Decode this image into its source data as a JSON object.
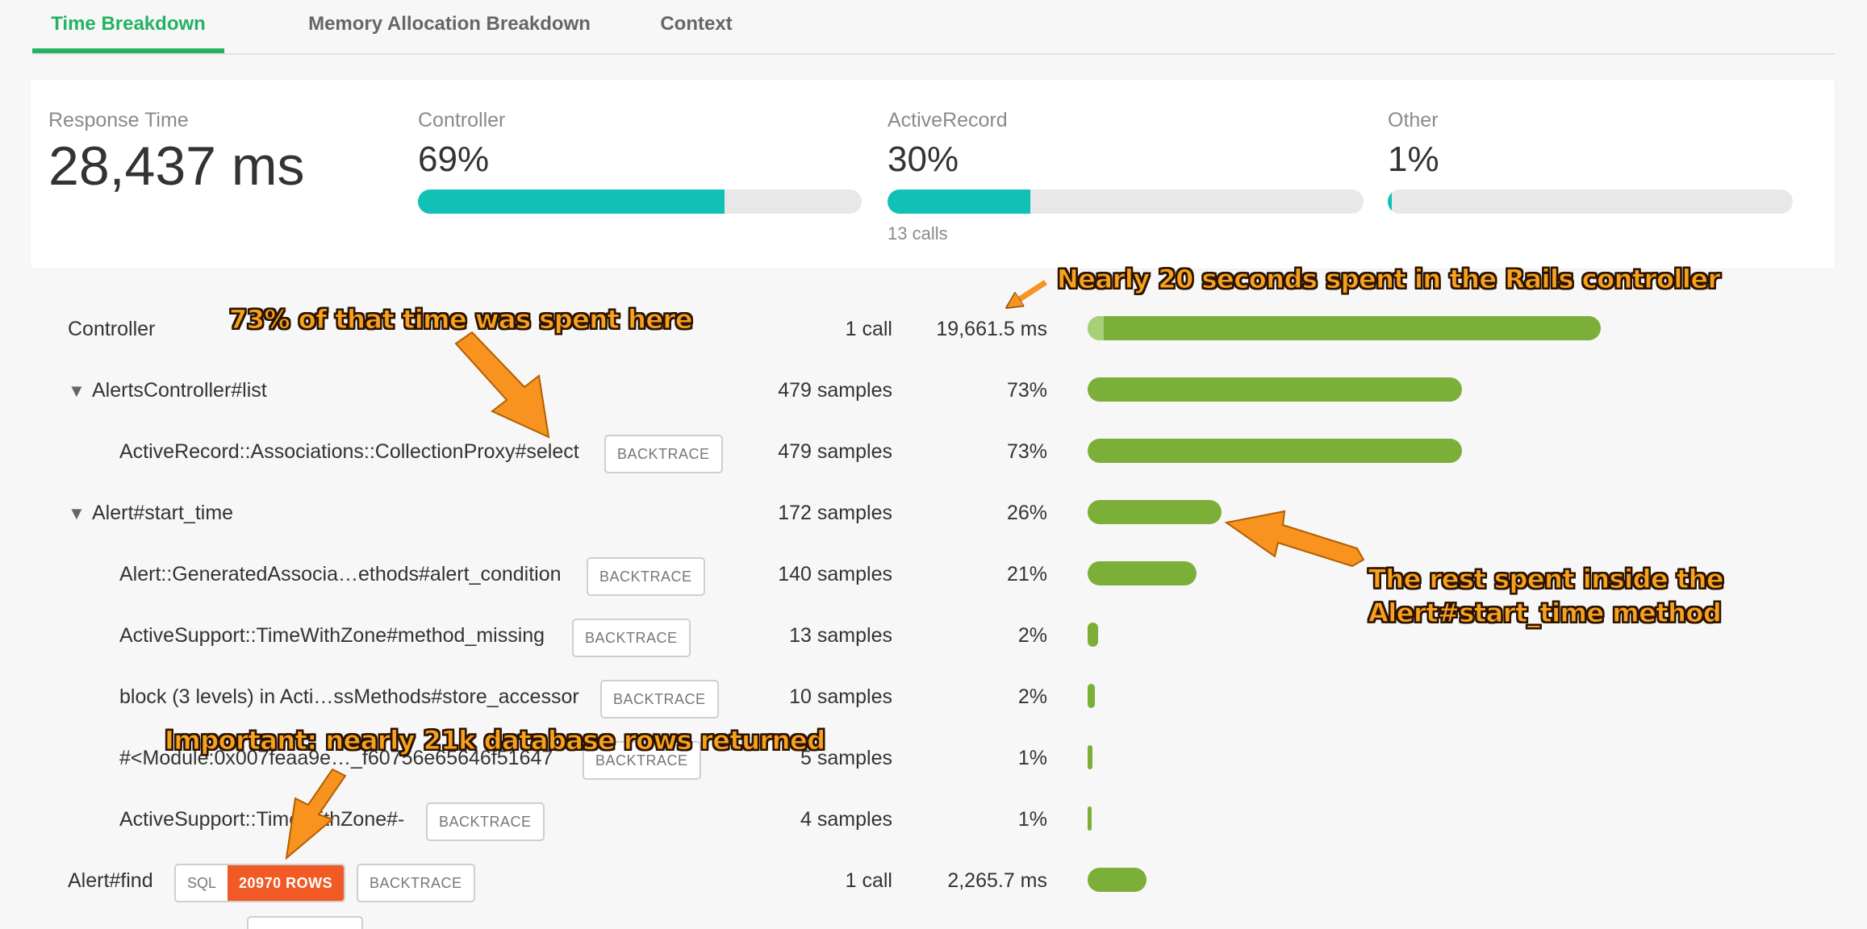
{
  "tabs": [
    {
      "label": "Time Breakdown",
      "active": true
    },
    {
      "label": "Memory Allocation Breakdown",
      "active": false
    },
    {
      "label": "Context",
      "active": false
    }
  ],
  "summary": {
    "response_time": {
      "label": "Response Time",
      "value": "28,437 ms"
    },
    "controller": {
      "label": "Controller",
      "percent": "69%",
      "fill": 0.69
    },
    "activerecord": {
      "label": "ActiveRecord",
      "percent": "30%",
      "fill": 0.3,
      "note": "13 calls"
    },
    "other": {
      "label": "Other",
      "percent": "1%",
      "fill": 0.01
    }
  },
  "rows": [
    {
      "name": "Controller",
      "count": "1 call",
      "value": "19,661.5 ms",
      "bar": 0.636,
      "bar_light": 0.02
    },
    {
      "name": "AlertsController#list",
      "expanded": true,
      "count": "479 samples",
      "value": "73%",
      "bar": 0.464
    },
    {
      "name": "ActiveRecord::Associations::CollectionProxy#select",
      "count": "479 samples",
      "value": "73%",
      "bar": 0.464,
      "button": "BACKTRACE"
    },
    {
      "name": "Alert#start_time",
      "expanded": true,
      "count": "172 samples",
      "value": "26%",
      "bar": 0.166
    },
    {
      "name": "Alert::GeneratedAssocia…ethods#alert_condition",
      "count": "140 samples",
      "value": "21%",
      "bar": 0.135,
      "button": "BACKTRACE"
    },
    {
      "name": "ActiveSupport::TimeWithZone#method_missing",
      "count": "13 samples",
      "value": "2%",
      "bar": 0.013,
      "button": "BACKTRACE"
    },
    {
      "name": "block (3 levels) in Acti…ssMethods#store_accessor",
      "count": "10 samples",
      "value": "2%",
      "bar": 0.009,
      "button": "BACKTRACE"
    },
    {
      "name": "#<Module:0x007feaa9e…_f60756e65646f51647",
      "count": "5 samples",
      "value": "1%",
      "bar": 0.006,
      "button": "BACKTRACE"
    },
    {
      "name": "ActiveSupport::TimeWithZone#-",
      "count": "4 samples",
      "value": "1%",
      "bar": 0.004,
      "button": "BACKTRACE"
    },
    {
      "name": "Alert#find",
      "count": "1 call",
      "value": "2,265.7 ms",
      "bar": 0.073,
      "sql_label": "SQL",
      "rows_badge": "20970 ROWS",
      "button": "BACKTRACE"
    }
  ],
  "annotations": {
    "controller_note": "Nearly 20 seconds spent in the Rails controller",
    "select_note": "73% of that time was spent here",
    "start_time_note_line1": "The rest spent inside the",
    "start_time_note_line2": "Alert#start_time method",
    "rows_note": "Important: nearly 21k database rows returned"
  },
  "colors": {
    "accent_green": "#24b262",
    "teal_bar": "#12c1b5",
    "green_bar": "#7caf37",
    "rows_badge": "#f15a24",
    "annotation": "#f7a11f"
  }
}
